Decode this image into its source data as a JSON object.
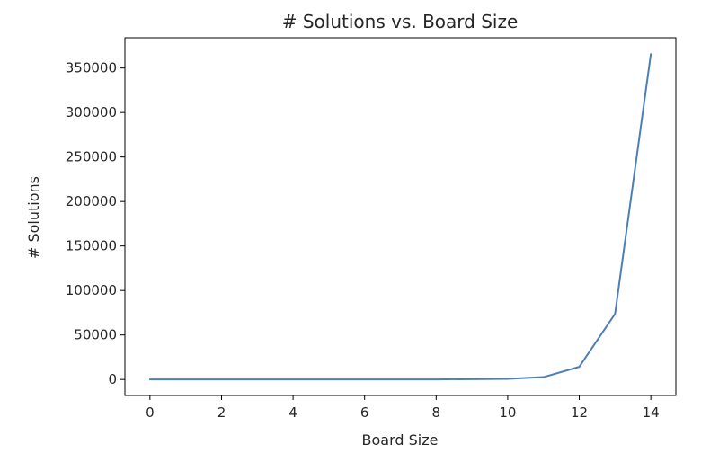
{
  "chart_data": {
    "type": "line",
    "title": "# Solutions vs. Board Size",
    "xlabel": "Board Size",
    "ylabel": "# Solutions",
    "xlim": [
      -0.7,
      14.7
    ],
    "ylim": [
      -18000,
      384000
    ],
    "xticks": [
      0,
      2,
      4,
      6,
      8,
      10,
      12,
      14
    ],
    "yticks": [
      0,
      50000,
      100000,
      150000,
      200000,
      250000,
      300000,
      350000
    ],
    "grid": false,
    "line_color": "#4c7fb8",
    "series": [
      {
        "x": [
          0,
          1,
          2,
          3,
          4,
          5,
          6,
          7,
          8,
          9,
          10,
          11,
          12,
          13,
          14
        ],
        "values": [
          1,
          1,
          0,
          0,
          2,
          10,
          4,
          40,
          92,
          352,
          724,
          2680,
          14200,
          73712,
          365596
        ]
      }
    ]
  }
}
